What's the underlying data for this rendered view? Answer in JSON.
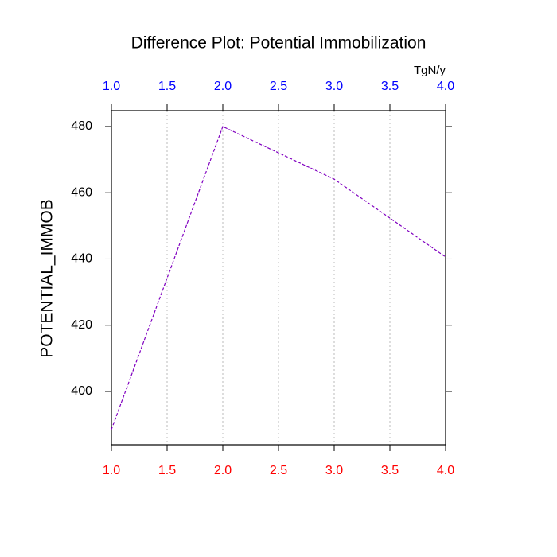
{
  "chart_data": {
    "type": "line",
    "title": "Difference Plot: Potential Immobilization",
    "ylabel": "POTENTIAL_IMMOB",
    "top_xlabel": "TgN/y",
    "x": [
      1,
      2,
      3,
      4
    ],
    "values": [
      388.5,
      480,
      464.1,
      440.6
    ],
    "color": "#8000c0",
    "xlim": [
      1,
      4
    ],
    "xticks": [
      {
        "value": 1,
        "label": "1.0"
      },
      {
        "value": 1.5,
        "label": "1.5"
      },
      {
        "value": 2,
        "label": "2.0"
      },
      {
        "value": 2.5,
        "label": "2.5"
      },
      {
        "value": 3,
        "label": "3.0"
      },
      {
        "value": 3.5,
        "label": "3.5"
      },
      {
        "value": 4,
        "label": "4.0"
      }
    ],
    "bottom_tick_color": "#ff0000",
    "top_tick_color": "#0000ff",
    "ylim": [
      383.9,
      484.8
    ],
    "yticks": [
      400,
      420,
      440,
      460,
      480
    ],
    "grid": true
  }
}
